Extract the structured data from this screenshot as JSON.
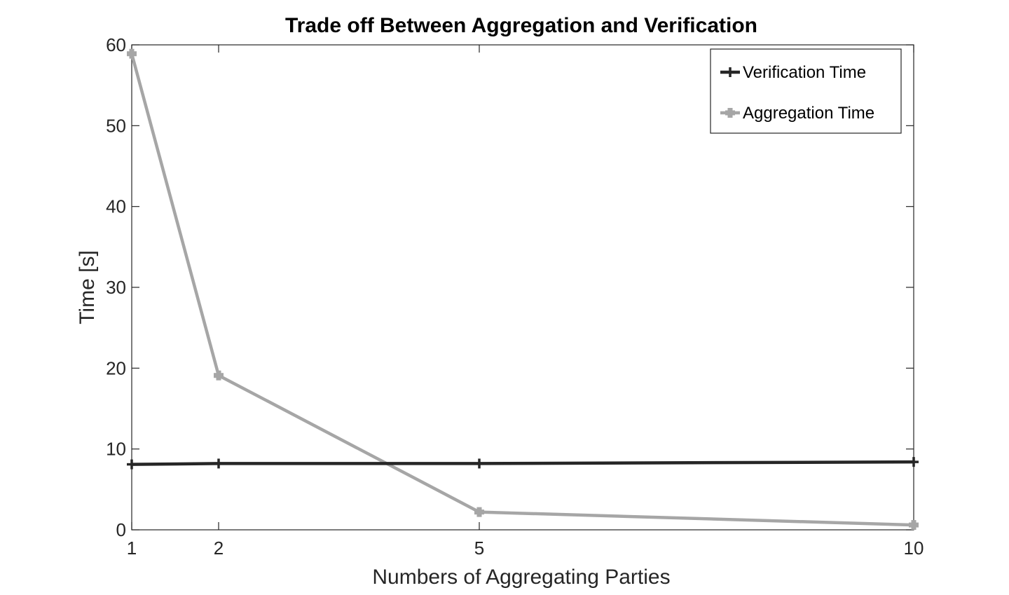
{
  "chart_data": {
    "type": "line",
    "title": "Trade off Between Aggregation and Verification",
    "xlabel": "Numbers of Aggregating Parties",
    "ylabel": "Time [s]",
    "x": [
      1,
      2,
      5,
      10
    ],
    "xlim": [
      1,
      10
    ],
    "ylim": [
      0,
      60
    ],
    "xticks": [
      1,
      2,
      5,
      10
    ],
    "yticks": [
      0,
      10,
      20,
      30,
      40,
      50,
      60
    ],
    "grid": false,
    "legend_position": "top-right",
    "series": [
      {
        "name": "Verification Time",
        "values": [
          8.1,
          8.2,
          8.2,
          8.4
        ],
        "color": "#262626",
        "marker": "plus"
      },
      {
        "name": "Aggregation Time",
        "values": [
          58.9,
          19.1,
          2.2,
          0.6
        ],
        "color": "#a6a6a6",
        "marker": "plus-filled"
      }
    ]
  }
}
